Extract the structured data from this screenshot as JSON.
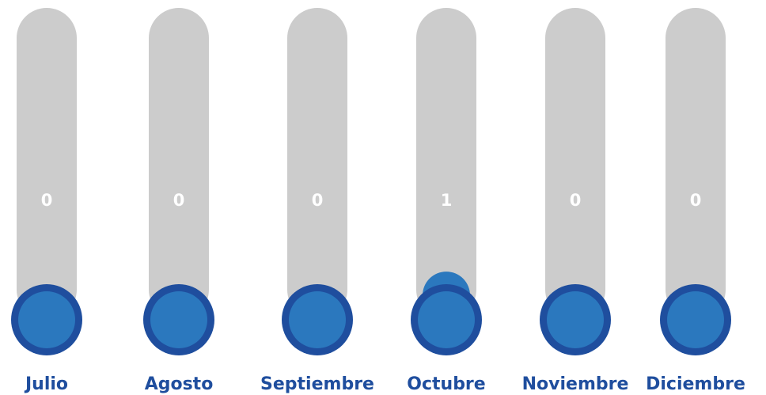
{
  "chart_data": {
    "type": "bar",
    "categories": [
      "Julio",
      "Agosto",
      "Septiembre",
      "Octubre",
      "Noviembre",
      "Diciembre"
    ],
    "values": [
      0,
      0,
      0,
      1,
      0,
      0
    ],
    "ylim": [
      0,
      15
    ],
    "colors": {
      "track": "#cccccc",
      "fill": "#2b78be",
      "bulb_ring": "#1f4e9e",
      "bulb_fill": "#2b78be",
      "value_label": "#ffffff",
      "category_label": "#1f4e9e"
    }
  }
}
